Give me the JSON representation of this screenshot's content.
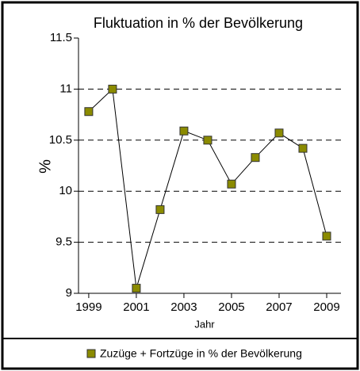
{
  "chart_data": {
    "type": "line",
    "title": "Fluktuation in % der Bevölkerung",
    "xlabel": "Jahr",
    "ylabel": "%",
    "x": [
      1999,
      2000,
      2001,
      2002,
      2003,
      2004,
      2005,
      2006,
      2007,
      2008,
      2009
    ],
    "series": [
      {
        "name": "Zuzüge + Fortzüge in % der Bevölkerung",
        "color": "#8b8b00",
        "values": [
          10.78,
          11.0,
          9.05,
          9.82,
          10.59,
          10.5,
          10.07,
          10.33,
          10.57,
          10.42,
          9.56
        ]
      }
    ],
    "xlim": [
      1998.57,
      2009.6
    ],
    "xticks": [
      1999,
      2001,
      2003,
      2005,
      2007,
      2009
    ],
    "ylim": [
      9,
      11.5
    ],
    "yticks": [
      9,
      9.5,
      10,
      10.5,
      11,
      11.5
    ],
    "grid": true,
    "legend": "bottom"
  }
}
